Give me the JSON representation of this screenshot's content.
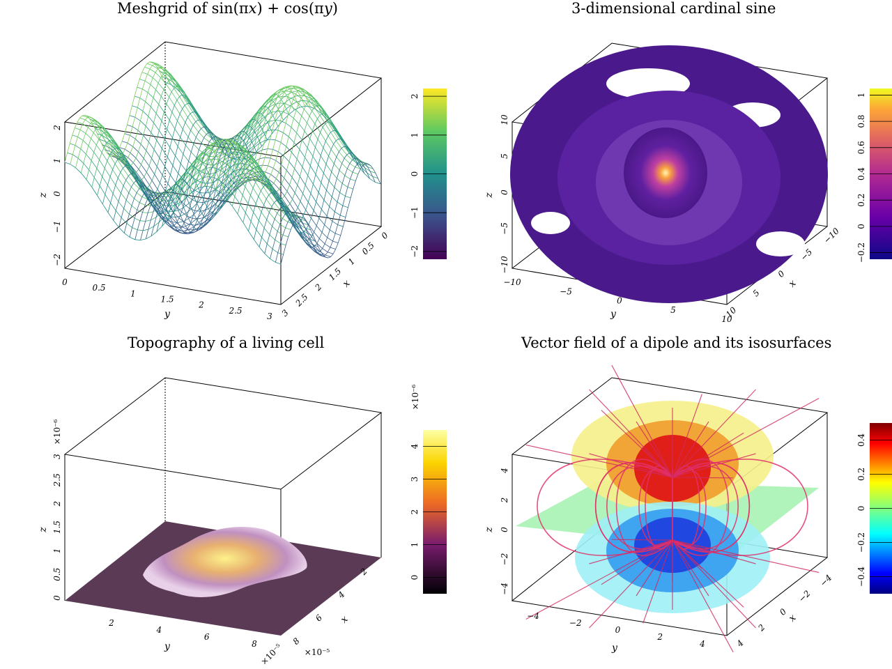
{
  "chart_data": [
    {
      "type": "surface-wireframe",
      "title": "Meshgrid of sin(πx) + cos(πy)",
      "title_parts": {
        "pre": "Meshgrid of sin(",
        "pi1": "π",
        "v1": "x",
        "mid": ") + cos(",
        "pi2": "π",
        "v2": "y",
        "post": ")"
      },
      "xlabel": "x",
      "ylabel": "y",
      "zlabel": "z",
      "x_ticks": [
        "0",
        "0.5",
        "1",
        "1.5",
        "2",
        "2.5",
        "3"
      ],
      "y_ticks": [
        "0",
        "0.5",
        "1",
        "1.5",
        "2",
        "2.5",
        "3"
      ],
      "z_ticks": [
        "−2",
        "−1",
        "0",
        "1",
        "2"
      ],
      "xlim": [
        0,
        3
      ],
      "ylim": [
        0,
        3
      ],
      "zlim": [
        -2,
        2
      ],
      "colormap": "viridis",
      "colorbar": {
        "ticks": [
          "−2",
          "−1",
          "0",
          "1",
          "2"
        ],
        "range": [
          -2.2,
          2.2
        ]
      }
    },
    {
      "type": "isosurface",
      "title": "3-dimensional cardinal sine",
      "xlabel": "x",
      "ylabel": "y",
      "zlabel": "z",
      "x_ticks": [
        "−10",
        "−5",
        "0",
        "5",
        "10"
      ],
      "y_ticks": [
        "−10",
        "−5",
        "0",
        "5",
        "10"
      ],
      "z_ticks": [
        "−10",
        "−5",
        "0",
        "5",
        "10"
      ],
      "xlim": [
        -10,
        10
      ],
      "ylim": [
        -10,
        10
      ],
      "zlim": [
        -10,
        10
      ],
      "colormap": "plasma",
      "colorbar": {
        "ticks": [
          "−0.2",
          "0",
          "0.2",
          "0.4",
          "0.6",
          "0.8",
          "1"
        ],
        "range": [
          -0.25,
          1.05
        ]
      }
    },
    {
      "type": "surface",
      "title": "Topography of a living cell",
      "xlabel": "x",
      "ylabel": "y",
      "zlabel": "z",
      "x_ticks": [
        "2",
        "4",
        "6",
        "8"
      ],
      "y_ticks": [
        "2",
        "4",
        "6",
        "8"
      ],
      "z_ticks": [
        "0",
        "0.5",
        "1",
        "1.5",
        "2",
        "2.5",
        "3"
      ],
      "x_mult": "×10⁻⁵",
      "y_mult": "×10⁻⁵",
      "z_mult": "×10⁻⁶",
      "colormap": "inferno",
      "colorbar": {
        "ticks": [
          "0",
          "1",
          "2",
          "3",
          "4"
        ],
        "multiplier": "×10⁻⁶",
        "range": [
          -0.5,
          4.5
        ]
      }
    },
    {
      "type": "isosurface+streamlines",
      "title": "Vector field of a dipole and its isosurfaces",
      "xlabel": "x",
      "ylabel": "y",
      "zlabel": "z",
      "x_ticks": [
        "4",
        "2",
        "0",
        "−2",
        "−4"
      ],
      "y_ticks": [
        "−4",
        "−2",
        "0",
        "2",
        "4"
      ],
      "z_ticks": [
        "−4",
        "−2",
        "0",
        "2",
        "4"
      ],
      "colormap": "jet",
      "colorbar": {
        "ticks": [
          "−0.4",
          "−0.2",
          "0",
          "0.2",
          "0.4"
        ],
        "range": [
          -0.5,
          0.5
        ]
      }
    }
  ]
}
